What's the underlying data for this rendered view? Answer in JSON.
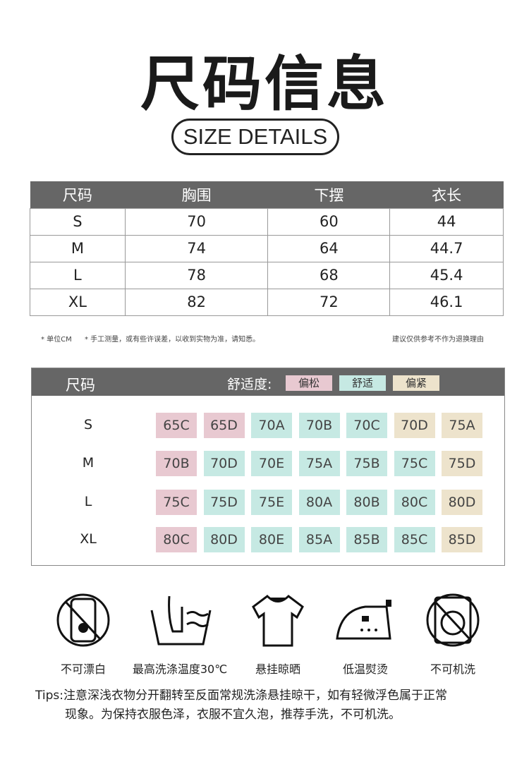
{
  "title": "尺码信息",
  "subtitle": "SIZE DETAILS",
  "size_table": {
    "headers": [
      "尺码",
      "胸围",
      "下摆",
      "衣长"
    ],
    "rows": [
      [
        "S",
        "70",
        "60",
        "44"
      ],
      [
        "M",
        "74",
        "64",
        "44.7"
      ],
      [
        "L",
        "78",
        "68",
        "45.4"
      ],
      [
        "XL",
        "82",
        "72",
        "46.1"
      ]
    ]
  },
  "notes": {
    "left1": "* 单位CM",
    "left2": "* 手工测量，或有些许误差，以收到实物为准，请知悉。",
    "right": "建议仅供参考不作为退换理由"
  },
  "fit_table": {
    "header": "尺码",
    "comfort_label": "舒适度:",
    "legend": [
      {
        "label": "偏松",
        "color": "#e8c9d1"
      },
      {
        "label": "舒适",
        "color": "#c6e9e3"
      },
      {
        "label": "偏紧",
        "color": "#ede3cc"
      }
    ],
    "rows": [
      {
        "size": "S",
        "cells": [
          [
            "65C",
            "loose"
          ],
          [
            "65D",
            "loose"
          ],
          [
            "70A",
            "fit"
          ],
          [
            "70B",
            "fit"
          ],
          [
            "70C",
            "fit"
          ],
          [
            "70D",
            "tight"
          ],
          [
            "75A",
            "tight"
          ]
        ]
      },
      {
        "size": "M",
        "cells": [
          [
            "70B",
            "loose"
          ],
          [
            "70D",
            "fit"
          ],
          [
            "70E",
            "fit"
          ],
          [
            "75A",
            "fit"
          ],
          [
            "75B",
            "fit"
          ],
          [
            "75C",
            "fit"
          ],
          [
            "75D",
            "tight"
          ]
        ]
      },
      {
        "size": "L",
        "cells": [
          [
            "75C",
            "loose"
          ],
          [
            "75D",
            "fit"
          ],
          [
            "75E",
            "fit"
          ],
          [
            "80A",
            "fit"
          ],
          [
            "80B",
            "fit"
          ],
          [
            "80C",
            "fit"
          ],
          [
            "80D",
            "tight"
          ]
        ]
      },
      {
        "size": "XL",
        "cells": [
          [
            "80C",
            "loose"
          ],
          [
            "80D",
            "fit"
          ],
          [
            "80E",
            "fit"
          ],
          [
            "85A",
            "fit"
          ],
          [
            "85B",
            "fit"
          ],
          [
            "85C",
            "fit"
          ],
          [
            "85D",
            "tight"
          ]
        ]
      }
    ]
  },
  "care": [
    {
      "icon": "no-bleach-icon",
      "label": "不可漂白"
    },
    {
      "icon": "hand-wash-icon",
      "label": "最高洗涤温度30℃"
    },
    {
      "icon": "hang-dry-icon",
      "label": "悬挂晾晒"
    },
    {
      "icon": "low-iron-icon",
      "label": "低温熨烫"
    },
    {
      "icon": "no-machine-wash-icon",
      "label": "不可机洗"
    }
  ],
  "tips": [
    "Tips:注意深浅衣物分开翻转至反面常规洗涤悬挂晾干，如有轻微浮色属于正常",
    "现象。为保持衣服色泽，衣服不宜久泡，推荐手洗，不可机洗。"
  ]
}
